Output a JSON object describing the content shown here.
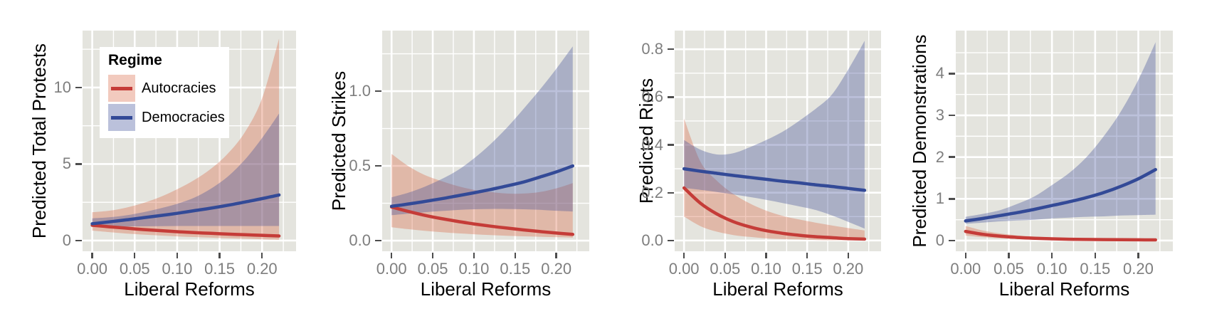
{
  "colors": {
    "background": "#FFFFFF",
    "panel_bg": "#E4E4DE",
    "grid": "#FFFFFF",
    "tick_mark": "#4D4D4D",
    "tick_label": "#7E7E7E",
    "axis_title": "#000000",
    "autocracy_line": "#C53C38",
    "autocracy_fill": "rgba(217,95,57,0.33)",
    "democracy_line": "#334A97",
    "democracy_fill": "rgba(62,78,153,0.35)",
    "legend_bg": "#FFFFFF",
    "autocracy_key_fill": "#F2CABE",
    "democracy_key_fill": "#BBC1DB"
  },
  "legend": {
    "title": "Regime",
    "items": [
      {
        "label": "Autocracies",
        "line": "#C53C38",
        "fill": "#F2CABE"
      },
      {
        "label": "Democracies",
        "line": "#334A97",
        "fill": "#BBC1DB"
      }
    ]
  },
  "chart_data": [
    {
      "type": "line",
      "ylabel": "Predicted Total Protests",
      "xlabel": "Liberal Reforms",
      "x": [
        0,
        0.02,
        0.04,
        0.06,
        0.08,
        0.1,
        0.12,
        0.14,
        0.16,
        0.18,
        0.2,
        0.22
      ],
      "xlim": [
        -0.0114,
        0.24
      ],
      "ylim": [
        -0.7,
        13.72
      ],
      "xticks": {
        "values": [
          0,
          0.05,
          0.1,
          0.15,
          0.2
        ],
        "labels": [
          "0.00",
          "0.05",
          "0.10",
          "0.15",
          "0.20"
        ]
      },
      "yticks": {
        "values": [
          0,
          5,
          10
        ],
        "labels": [
          "0",
          "5",
          "10"
        ]
      },
      "xminor": [
        0.025,
        0.075,
        0.125,
        0.175,
        0.225
      ],
      "yminor": [
        2.5,
        7.5,
        12.5
      ],
      "series": [
        {
          "name": "Autocracies",
          "line": [
            1.0,
            0.9,
            0.81,
            0.72,
            0.65,
            0.58,
            0.52,
            0.47,
            0.42,
            0.38,
            0.34,
            0.3
          ],
          "lower": [
            0.65,
            0.55,
            0.46,
            0.39,
            0.33,
            0.27,
            0.23,
            0.19,
            0.15,
            0.12,
            0.08,
            0.05
          ],
          "upper": [
            1.85,
            1.95,
            2.15,
            2.45,
            2.85,
            3.35,
            3.95,
            4.7,
            5.7,
            7.1,
            9.3,
            13.2
          ]
        },
        {
          "name": "Democracies",
          "line": [
            1.1,
            1.22,
            1.35,
            1.49,
            1.63,
            1.78,
            1.95,
            2.12,
            2.31,
            2.52,
            2.74,
            2.98
          ],
          "lower": [
            0.9,
            0.91,
            0.92,
            0.93,
            0.94,
            0.95,
            0.95,
            0.95,
            0.95,
            0.95,
            0.95,
            0.95
          ],
          "upper": [
            1.45,
            1.52,
            1.65,
            1.85,
            2.1,
            2.4,
            2.8,
            3.4,
            4.2,
            5.3,
            6.7,
            8.3
          ]
        }
      ]
    },
    {
      "type": "line",
      "ylabel": "Predicted Strikes",
      "xlabel": "Liberal Reforms",
      "x": [
        0,
        0.02,
        0.04,
        0.06,
        0.08,
        0.1,
        0.12,
        0.14,
        0.16,
        0.18,
        0.2,
        0.22
      ],
      "xlim": [
        -0.0114,
        0.24
      ],
      "ylim": [
        -0.071,
        1.405
      ],
      "xticks": {
        "values": [
          0,
          0.05,
          0.1,
          0.15,
          0.2
        ],
        "labels": [
          "0.00",
          "0.05",
          "0.10",
          "0.15",
          "0.20"
        ]
      },
      "yticks": {
        "values": [
          0,
          0.5,
          1.0
        ],
        "labels": [
          "0.0",
          "0.5",
          "1.0"
        ]
      },
      "xminor": [
        0.025,
        0.075,
        0.125,
        0.175,
        0.225
      ],
      "yminor": [
        0.25,
        0.75,
        1.25
      ],
      "series": [
        {
          "name": "Autocracies",
          "line": [
            0.225,
            0.196,
            0.17,
            0.148,
            0.129,
            0.112,
            0.097,
            0.084,
            0.072,
            0.061,
            0.051,
            0.042
          ],
          "lower": [
            0.09,
            0.077,
            0.066,
            0.057,
            0.049,
            0.043,
            0.037,
            0.033,
            0.029,
            0.026,
            0.023,
            0.02
          ],
          "upper": [
            0.58,
            0.5,
            0.44,
            0.4,
            0.365,
            0.34,
            0.325,
            0.315,
            0.315,
            0.325,
            0.35,
            0.385
          ]
        },
        {
          "name": "Democracies",
          "line": [
            0.23,
            0.245,
            0.262,
            0.28,
            0.3,
            0.32,
            0.342,
            0.366,
            0.392,
            0.425,
            0.46,
            0.5
          ],
          "lower": [
            0.17,
            0.18,
            0.19,
            0.198,
            0.205,
            0.21,
            0.212,
            0.212,
            0.21,
            0.206,
            0.2,
            0.195
          ],
          "upper": [
            0.29,
            0.32,
            0.36,
            0.41,
            0.47,
            0.55,
            0.645,
            0.755,
            0.88,
            1.01,
            1.15,
            1.3
          ]
        }
      ]
    },
    {
      "type": "line",
      "ylabel": "Predicted Riots",
      "xlabel": "Liberal Reforms",
      "x": [
        0,
        0.02,
        0.04,
        0.06,
        0.08,
        0.1,
        0.12,
        0.14,
        0.16,
        0.18,
        0.2,
        0.22
      ],
      "xlim": [
        -0.0114,
        0.24
      ],
      "ylim": [
        -0.045,
        0.878
      ],
      "xticks": {
        "values": [
          0,
          0.05,
          0.1,
          0.15,
          0.2
        ],
        "labels": [
          "0.00",
          "0.05",
          "0.10",
          "0.15",
          "0.20"
        ]
      },
      "yticks": {
        "values": [
          0,
          0.2,
          0.4,
          0.6,
          0.8
        ],
        "labels": [
          "0.0",
          "0.2",
          "0.4",
          "0.6",
          "0.8"
        ]
      },
      "xminor": [
        0.025,
        0.075,
        0.125,
        0.175,
        0.225
      ],
      "yminor": [
        0.1,
        0.3,
        0.5,
        0.7
      ],
      "series": [
        {
          "name": "Autocracies",
          "line": [
            0.22,
            0.156,
            0.111,
            0.079,
            0.057,
            0.041,
            0.03,
            0.022,
            0.016,
            0.012,
            0.008,
            0.006
          ],
          "lower": [
            0.1,
            0.06,
            0.037,
            0.023,
            0.015,
            0.009,
            0.006,
            0.004,
            0.002,
            0.001,
            0.001,
            0.0
          ],
          "upper": [
            0.51,
            0.33,
            0.25,
            0.195,
            0.155,
            0.125,
            0.103,
            0.088,
            0.075,
            0.063,
            0.052,
            0.042
          ]
        },
        {
          "name": "Democracies",
          "line": [
            0.3,
            0.29,
            0.281,
            0.272,
            0.264,
            0.256,
            0.248,
            0.241,
            0.233,
            0.226,
            0.218,
            0.21
          ],
          "lower": [
            0.22,
            0.212,
            0.203,
            0.193,
            0.182,
            0.17,
            0.157,
            0.143,
            0.128,
            0.105,
            0.078,
            0.05
          ],
          "upper": [
            0.42,
            0.38,
            0.36,
            0.365,
            0.39,
            0.42,
            0.455,
            0.5,
            0.55,
            0.61,
            0.715,
            0.835
          ]
        }
      ]
    },
    {
      "type": "line",
      "ylabel": "Predicted Demonstrations",
      "xlabel": "Liberal Reforms",
      "x": [
        0,
        0.02,
        0.04,
        0.06,
        0.08,
        0.1,
        0.12,
        0.14,
        0.16,
        0.18,
        0.2,
        0.22
      ],
      "xlim": [
        -0.0114,
        0.24
      ],
      "ylim": [
        -0.256,
        5.03
      ],
      "xticks": {
        "values": [
          0,
          0.05,
          0.1,
          0.15,
          0.2
        ],
        "labels": [
          "0.00",
          "0.05",
          "0.10",
          "0.15",
          "0.20"
        ]
      },
      "yticks": {
        "values": [
          0,
          1,
          2,
          3,
          4
        ],
        "labels": [
          "0",
          "1",
          "2",
          "3",
          "4"
        ]
      },
      "xminor": [
        0.025,
        0.075,
        0.125,
        0.175,
        0.225
      ],
      "yminor": [
        0.5,
        1.5,
        2.5,
        3.5,
        4.5
      ],
      "series": [
        {
          "name": "Autocracies",
          "line": [
            0.22,
            0.15,
            0.105,
            0.075,
            0.055,
            0.042,
            0.033,
            0.027,
            0.023,
            0.02,
            0.018,
            0.016
          ],
          "lower": [
            0.12,
            0.08,
            0.055,
            0.04,
            0.03,
            0.023,
            0.018,
            0.015,
            0.013,
            0.011,
            0.01,
            0.009
          ],
          "upper": [
            0.35,
            0.24,
            0.17,
            0.125,
            0.095,
            0.075,
            0.06,
            0.05,
            0.043,
            0.038,
            0.034,
            0.03
          ]
        },
        {
          "name": "Democracies",
          "line": [
            0.47,
            0.53,
            0.6,
            0.67,
            0.75,
            0.84,
            0.93,
            1.03,
            1.15,
            1.3,
            1.48,
            1.7
          ],
          "lower": [
            0.4,
            0.43,
            0.46,
            0.48,
            0.5,
            0.53,
            0.55,
            0.57,
            0.58,
            0.6,
            0.61,
            0.62
          ],
          "upper": [
            0.57,
            0.64,
            0.73,
            0.88,
            1.06,
            1.33,
            1.62,
            2.0,
            2.5,
            3.1,
            3.85,
            4.75
          ]
        }
      ]
    }
  ]
}
